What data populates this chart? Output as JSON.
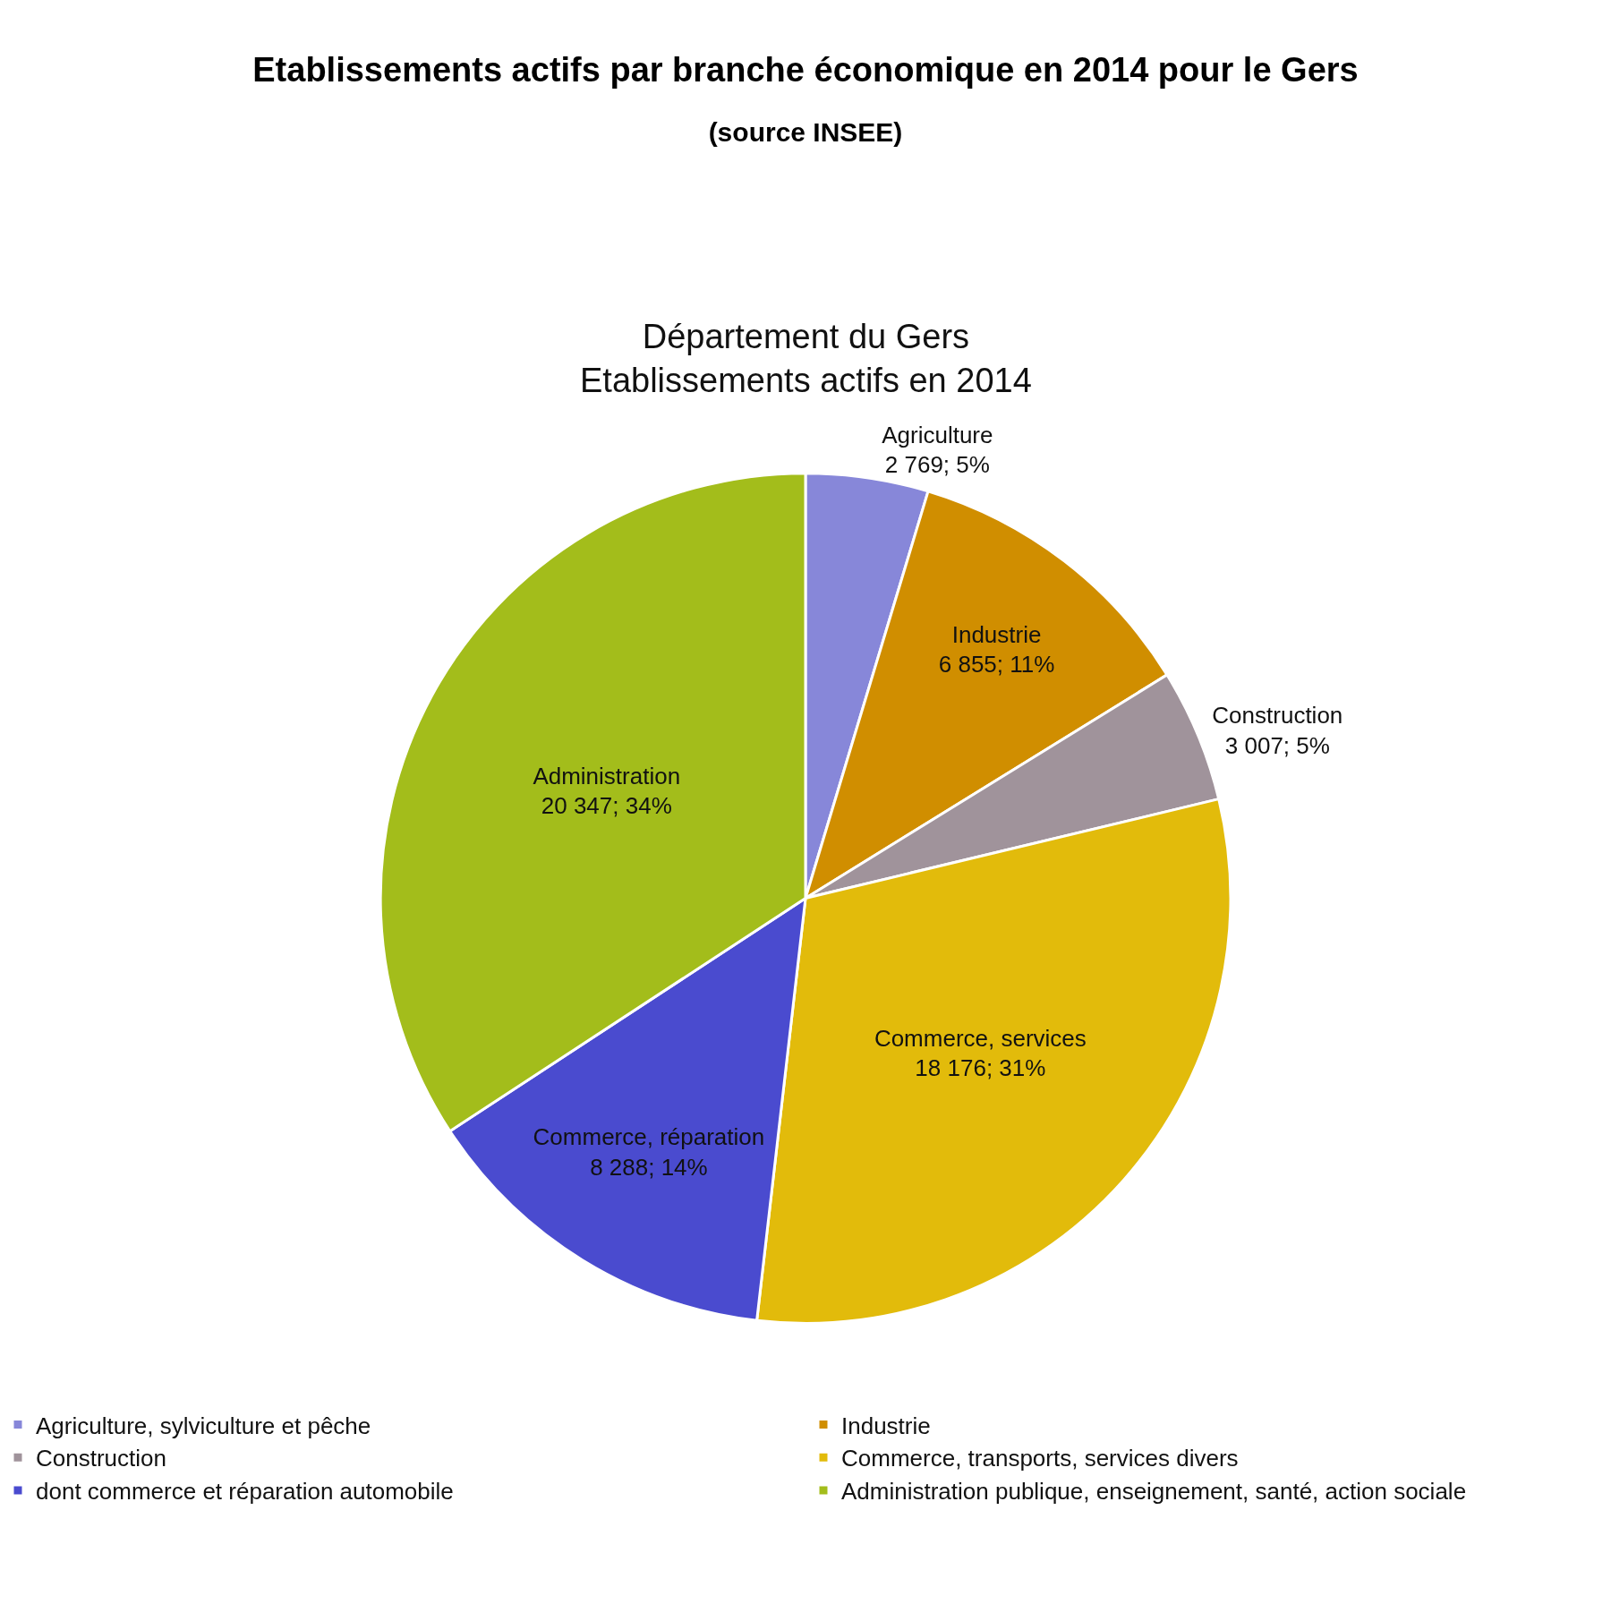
{
  "chart_data": {
    "type": "pie",
    "title": "Etablissements actifs par branche économique en 2014 pour le Gers",
    "subtitle": "(source INSEE)",
    "annotations": [
      "Département du Gers\nEtablissements actifs en 2014"
    ],
    "categories": [
      "Agriculture, sylviculture et pêche",
      "Industrie",
      "Construction",
      "Commerce, transports, services divers",
      "dont commerce et réparation automobile",
      "Administration publique, enseignement, santé, action sociale"
    ],
    "values": [
      2769,
      6855,
      3007,
      18176,
      8288,
      20347
    ],
    "value_labels": [
      "Agriculture\n2 769; 5%",
      "Industrie\n6 855; 11%",
      "Construction\n3 007; 5%",
      "Commerce, services\n18 176; 31%",
      "Commerce, réparation\n8 288; 14%",
      "Administration\n20 347; 34%"
    ],
    "colors": [
      "#8787d9",
      "#d08e00",
      "#a0939b",
      "#e2bb0b",
      "#4a4bcf",
      "#a3bd1b"
    ],
    "legend": "bottom"
  }
}
